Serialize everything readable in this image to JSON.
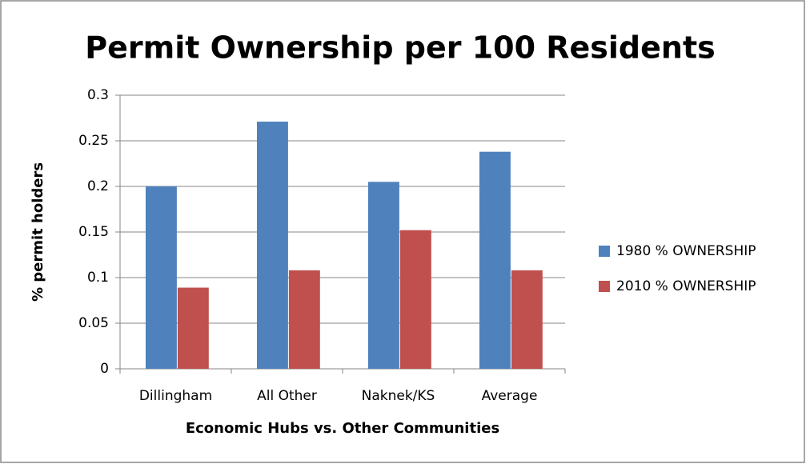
{
  "chart_data": {
    "type": "bar",
    "title": "Permit Ownership per 100 Residents",
    "x_label": "Economic Hubs vs. Other Communities",
    "y_label": "% permit holders",
    "categories": [
      "Dillingham",
      "All Other",
      "Naknek/KS",
      "Average"
    ],
    "series": [
      {
        "name": "1980 % OWNERSHIP",
        "color": "#4f81bd",
        "values": [
          0.2,
          0.271,
          0.205,
          0.238
        ]
      },
      {
        "name": "2010 % OWNERSHIP",
        "color": "#c0504d",
        "values": [
          0.089,
          0.108,
          0.152,
          0.108
        ]
      }
    ],
    "ylim": [
      0,
      0.3
    ],
    "yticks": [
      0,
      0.05,
      0.1,
      0.15,
      0.2,
      0.25,
      0.3
    ],
    "grid": true,
    "legend": "right"
  }
}
